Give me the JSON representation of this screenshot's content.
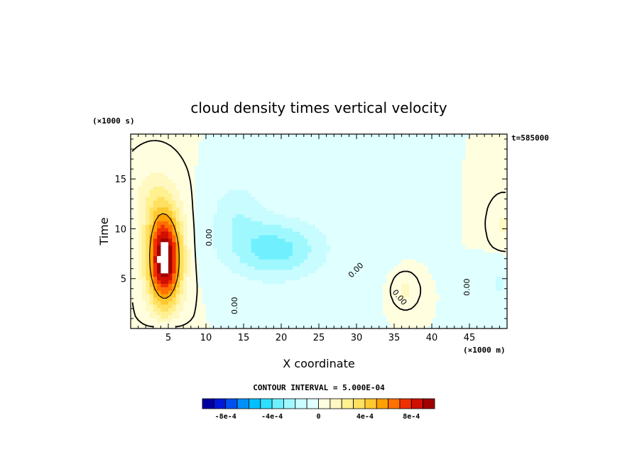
{
  "chart_data": {
    "type": "heatmap",
    "title": "cloud density times vertical velocity",
    "xlabel": "X coordinate",
    "ylabel": "Time",
    "x_units": "(×1000 m)",
    "y_units": "(×1000 s)",
    "time_stamp": "t=585000",
    "xlim": [
      0,
      50
    ],
    "ylim": [
      0,
      19.5
    ],
    "x_ticks": [
      "5",
      "10",
      "15",
      "20",
      "25",
      "30",
      "35",
      "40",
      "45"
    ],
    "x_tick_values": [
      5,
      10,
      15,
      20,
      25,
      30,
      35,
      40,
      45
    ],
    "y_ticks": [
      "5",
      "10",
      "15"
    ],
    "y_tick_values": [
      5,
      10,
      15
    ],
    "contour_interval_text": "CONTOUR INTERVAL = 5.000E-04",
    "contour_label": "0.00",
    "colorbar": {
      "levels": [
        -0.001,
        -0.0009,
        -0.0008,
        -0.0007,
        -0.0006,
        -0.0005,
        -0.0004,
        -0.0003,
        -0.0002,
        -0.0001,
        0,
        0.0001,
        0.0002,
        0.0003,
        0.0004,
        0.0005,
        0.0006,
        0.0007,
        0.0008,
        0.0009,
        0.001
      ],
      "colors": [
        "#0000a0",
        "#0018d8",
        "#0050f0",
        "#0090f8",
        "#00c0ff",
        "#30e0ff",
        "#70f0ff",
        "#a0f8ff",
        "#c8fcff",
        "#e0ffff",
        "#ffffe0",
        "#fff8c0",
        "#fff090",
        "#ffe060",
        "#ffc830",
        "#ffa000",
        "#ff7000",
        "#f03000",
        "#d01000",
        "#a00000"
      ],
      "tick_labels": [
        "-8e-4",
        "-4e-4",
        "0",
        "4e-4",
        "8e-4"
      ],
      "tick_values": [
        -0.0008,
        -0.0004,
        0,
        0.0004,
        0.0008
      ]
    },
    "features": [
      {
        "sign": "positive",
        "x": 4.5,
        "y": 7,
        "sx": 2.2,
        "sy": 4.5,
        "amp": 0.0011
      },
      {
        "sign": "positive",
        "x": 3.0,
        "y": 13,
        "sx": 3.0,
        "sy": 3.5,
        "amp": 0.00015
      },
      {
        "sign": "negative",
        "x": 19,
        "y": 8,
        "sx": 6.5,
        "sy": 3.0,
        "amp": -0.00035
      },
      {
        "sign": "negative",
        "x": 14,
        "y": 12,
        "sx": 3.5,
        "sy": 3.0,
        "amp": -0.00015
      },
      {
        "sign": "positive",
        "x": 36.5,
        "y": 3.8,
        "sx": 1.2,
        "sy": 1.2,
        "amp": 0.00014
      },
      {
        "sign": "positive",
        "x": 49.5,
        "y": 10.5,
        "sx": 1.5,
        "sy": 2.0,
        "amp": 0.00012
      },
      {
        "sign": "negative",
        "x": 49.0,
        "y": 4.5,
        "sx": 1.5,
        "sy": 2.0,
        "amp": -0.00012
      }
    ]
  }
}
